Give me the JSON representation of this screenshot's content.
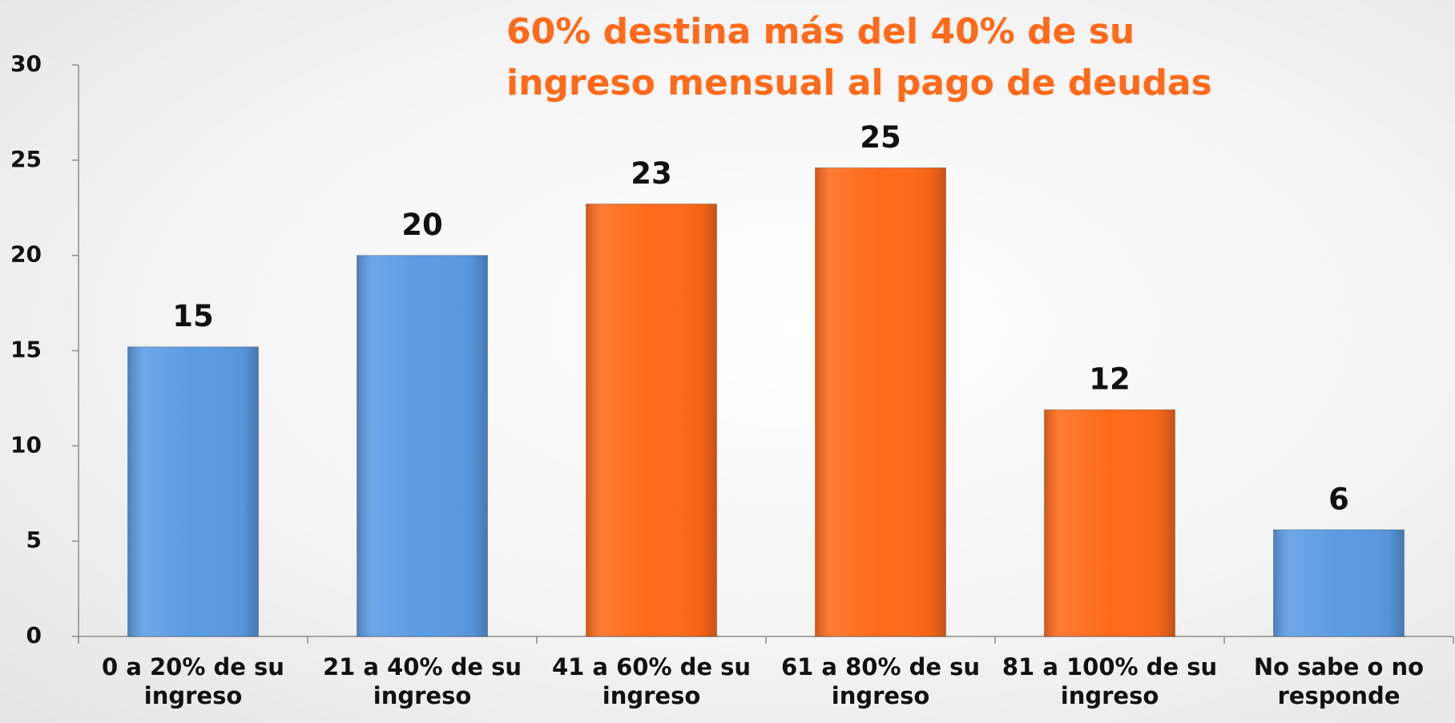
{
  "chart_data": {
    "type": "bar",
    "title": "60% destina más del 40% de su ingreso mensual al pago de deudas",
    "categories": [
      "0 a 20% de su ingreso",
      "21 a 40% de su ingreso",
      "41 a 60% de su ingreso",
      "61 a 80% de su ingreso",
      "81 a 100% de su ingreso",
      "No sabe o no responde"
    ],
    "values": [
      15.2,
      20,
      22.7,
      24.6,
      11.9,
      5.6
    ],
    "value_labels": [
      "15",
      "20",
      "23",
      "25",
      "12",
      "6"
    ],
    "colors": [
      "#5b9be3",
      "#5b9be3",
      "#ff6a1a",
      "#ff6a1a",
      "#ff6a1a",
      "#5b9be3"
    ],
    "ylim": [
      0,
      30
    ],
    "yticks": [
      0,
      5,
      10,
      15,
      20,
      25,
      30
    ],
    "grid": false
  }
}
